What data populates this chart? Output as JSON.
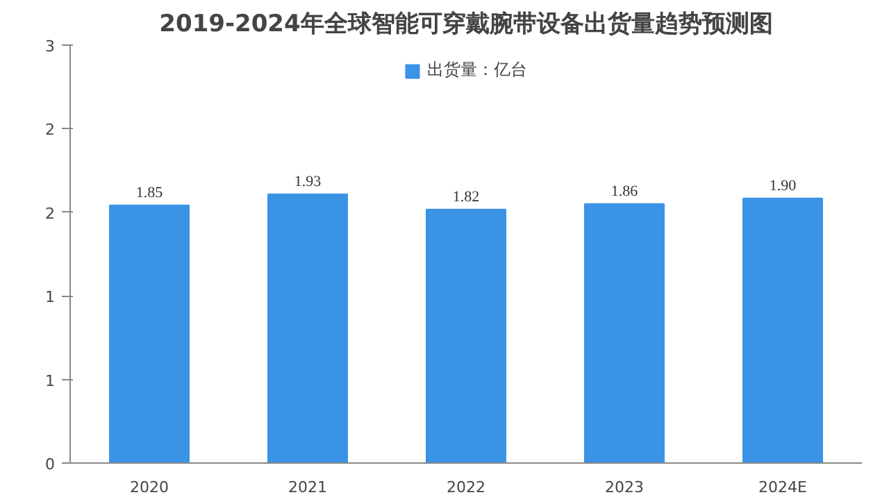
{
  "chart_data": {
    "type": "bar",
    "title": "2019-2024年全球智能可穿戴腕带设备出货量趋势预测图",
    "categories": [
      "2020",
      "2021",
      "2022",
      "2023",
      "2024E"
    ],
    "series": [
      {
        "name": "出货量：亿台",
        "color": "#3b93e6",
        "values": [
          1.85,
          1.93,
          1.82,
          1.86,
          1.9
        ],
        "value_labels": [
          "1.85",
          "1.93",
          "1.82",
          "1.86",
          "1.90"
        ]
      }
    ],
    "ylim": [
      0,
      3
    ],
    "yticks": [
      0,
      {
        "value": 0.6,
        "label": "1"
      },
      {
        "value": 1.2,
        "label": "1"
      },
      {
        "value": 1.8,
        "label": "2"
      },
      {
        "value": 2.4,
        "label": "2"
      },
      3
    ],
    "legend": "top",
    "grid": false
  }
}
